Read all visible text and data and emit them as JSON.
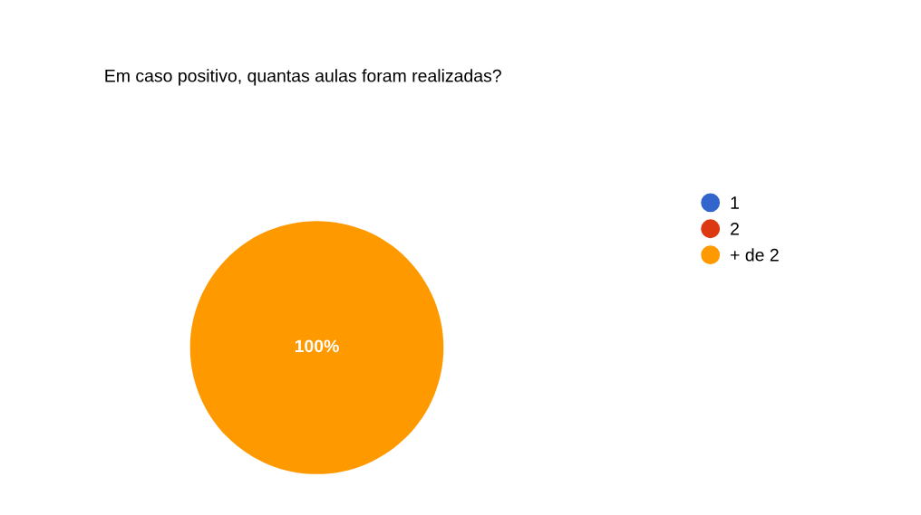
{
  "chart_data": {
    "type": "pie",
    "title": "Em caso positivo, quantas aulas foram realizadas?",
    "categories": [
      "1",
      "2",
      "+ de 2"
    ],
    "values": [
      0,
      0,
      100
    ],
    "colors": [
      "#3366cc",
      "#dc3912",
      "#ff9900"
    ],
    "value_labels": [
      null,
      null,
      "100%"
    ],
    "legend": "right"
  }
}
